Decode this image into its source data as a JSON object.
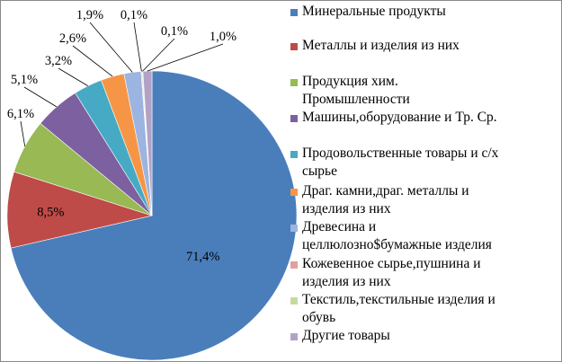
{
  "chart_data": {
    "type": "pie",
    "title": "",
    "legend_position": "right",
    "categories": [
      "Минеральные продукты",
      "Металлы и изделия из них",
      "Продукция хим. Промышленности",
      "Машины,оборудование и Тр. Ср.",
      "Продовольственные товары и с/х сырье",
      "Драг. камни,драг. металлы и изделия из них",
      "Древесина и целлюлозно$бумажные изделия",
      "Кожевенное сырье,пушнина и изделия из них",
      "Текстиль,текстильные изделия и обувь",
      "Другие товары"
    ],
    "values": [
      71.4,
      8.5,
      6.1,
      5.1,
      3.2,
      2.6,
      1.9,
      0.1,
      0.1,
      1.0
    ],
    "value_labels": [
      "71,4%",
      "8,5%",
      "6,1%",
      "5,1%",
      "3,2%",
      "2,6%",
      "1,9%",
      "0,1%",
      "0,1%",
      "1,0%"
    ],
    "colors": [
      "#4a7ebb",
      "#be4b48",
      "#98b954",
      "#7d60a0",
      "#46aac4",
      "#f69546",
      "#9cb4e0",
      "#e0a09e",
      "#c4dba0",
      "#b3a2c7"
    ]
  },
  "legend_lines": [
    [
      "Минеральные продукты"
    ],
    [
      "Металлы и изделия из них"
    ],
    [
      "Продукция хим.",
      "Промышленности"
    ],
    [
      "Машины,оборудование и Тр. Ср."
    ],
    [
      "Продовольственные товары и с/х",
      "сырье"
    ],
    [
      "Драг. камни,драг. металлы и",
      "изделия из них"
    ],
    [
      "Древесина и",
      "целлюлозно$бумажные изделия"
    ],
    [
      "Кожевенное сырье,пушнина и",
      "изделия из них"
    ],
    [
      "Текстиль,текстильные изделия и",
      "обувь"
    ],
    [
      "Другие товары"
    ]
  ]
}
